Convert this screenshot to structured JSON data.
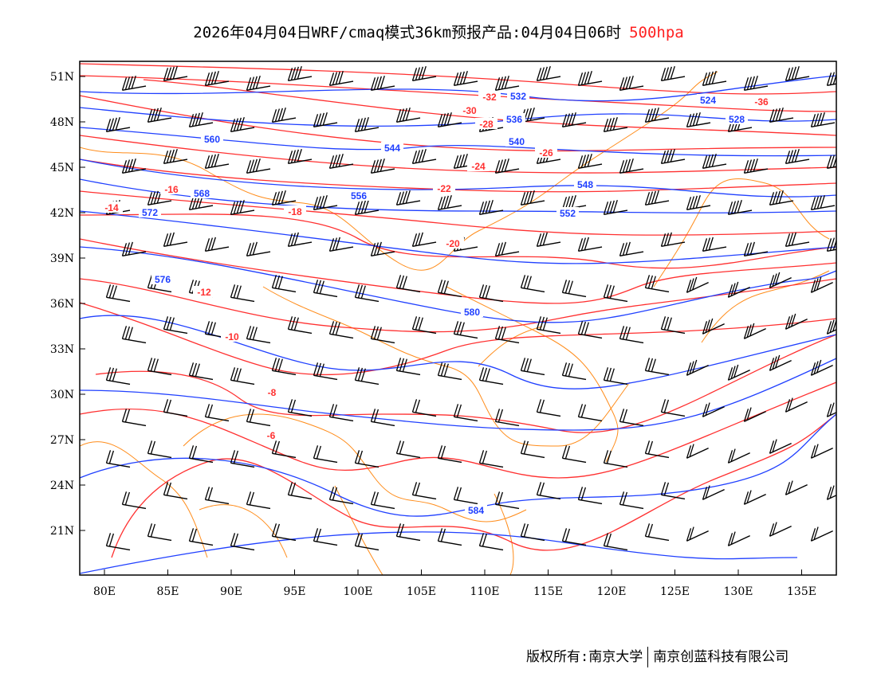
{
  "title": {
    "main": "2026年04月04日WRF/cmaq模式36km预报产品:04月04日06时",
    "level": "500hpa"
  },
  "axes": {
    "lon_ticks": [
      "80E",
      "85E",
      "90E",
      "95E",
      "100E",
      "105E",
      "110E",
      "115E",
      "120E",
      "125E",
      "130E",
      "135E"
    ],
    "lat_ticks": [
      "51N",
      "48N",
      "45N",
      "42N",
      "39N",
      "36N",
      "33N",
      "30N",
      "27N",
      "24N",
      "21N"
    ]
  },
  "height_labels": [
    "532",
    "536",
    "540",
    "544",
    "548",
    "552",
    "556",
    "560",
    "568",
    "572",
    "576",
    "580",
    "584",
    "524",
    "528"
  ],
  "temp_labels": [
    "-32",
    "-30",
    "-28",
    "-26",
    "-24",
    "-22",
    "-20",
    "-18",
    "-16",
    "-14",
    "-12",
    "-10",
    "-8",
    "-6",
    "-36"
  ],
  "colors": {
    "height": "#2040ff",
    "temperature": "#ff3030",
    "border": "#ff8c1a",
    "barb": "#000000",
    "level": "#ff2020"
  },
  "footer": {
    "left": "版权所有:南京大学",
    "right": "南京创蓝科技有限公司"
  }
}
